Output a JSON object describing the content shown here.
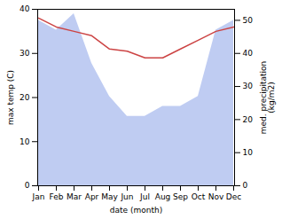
{
  "chart_data": {
    "type": "line",
    "xlabel": "date (month)",
    "ylabel": "max temp (C)",
    "y2label": "med. precipitation\n(kg/m2)",
    "categories": [
      "Jan",
      "Feb",
      "Mar",
      "Apr",
      "May",
      "Jun",
      "Jul",
      "Aug",
      "Sep",
      "Oct",
      "Nov",
      "Dec"
    ],
    "series": [
      {
        "type": "area",
        "axis": "y2",
        "color": "#aabbee",
        "values": [
          50,
          47,
          52,
          37,
          27,
          21,
          21,
          24,
          24,
          27,
          47,
          50
        ]
      },
      {
        "type": "line",
        "color": "#cc4444",
        "values": [
          38,
          36,
          35,
          34,
          31,
          30.5,
          29,
          29,
          31,
          33,
          35,
          36
        ]
      }
    ],
    "ylim": [
      0,
      40
    ],
    "yticks": [
      0,
      10,
      20,
      30,
      40
    ],
    "y2lim": [
      0,
      53.33
    ],
    "y2ticks": [
      0,
      10,
      20,
      30,
      40,
      50
    ],
    "grid": false
  }
}
